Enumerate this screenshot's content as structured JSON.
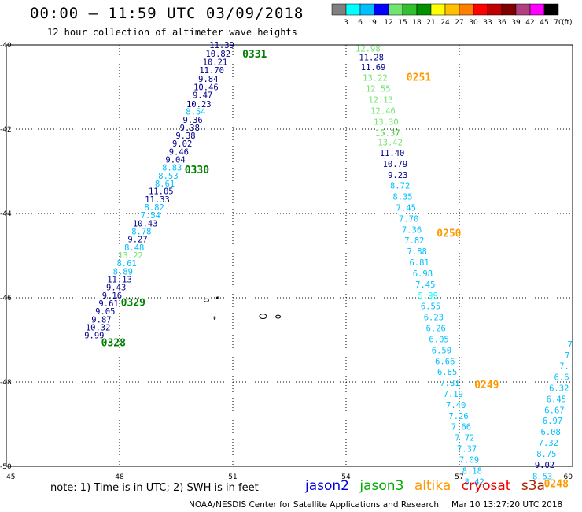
{
  "header": {
    "title": "00:00 – 11:59 UTC 03/09/2018",
    "subtitle": "12 hour collection of altimeter wave heights"
  },
  "legend": {
    "labels": [
      "3",
      "6",
      "9",
      "12",
      "15",
      "18",
      "21",
      "24",
      "27",
      "30",
      "33",
      "36",
      "39",
      "42",
      "45",
      "70",
      "(ft)"
    ],
    "colors": [
      "#808080",
      "#00ffff",
      "#00bfff",
      "#0000ff",
      "#6fe46f",
      "#30c030",
      "#009000",
      "#ffff00",
      "#ffc000",
      "#ff8000",
      "#ff0000",
      "#c00000",
      "#800000",
      "#b04080",
      "#ff00ff",
      "#000000"
    ]
  },
  "axes": {
    "lon_ticks": [
      "45",
      "48",
      "51",
      "54",
      "57",
      "60"
    ],
    "lat_ticks": [
      "-40",
      "-42",
      "-44",
      "-46",
      "-48",
      "-50"
    ]
  },
  "tracks": [
    {
      "satellite": "jason2",
      "pass": "0331",
      "pass_color": "#008000",
      "points": [
        {
          "lon": 50.71,
          "lat": -40.0,
          "swh": "11.39",
          "color": "#00008b"
        },
        {
          "lon": 50.61,
          "lat": -40.21,
          "swh": "10.82",
          "color": "#00008b"
        },
        {
          "lon": 50.53,
          "lat": -40.4,
          "swh": "10.21",
          "color": "#00008b"
        },
        {
          "lon": 50.44,
          "lat": -40.6,
          "swh": "11.70",
          "color": "#00008b"
        },
        {
          "lon": 50.35,
          "lat": -40.8,
          "swh": "9.84",
          "color": "#00008b"
        },
        {
          "lon": 50.29,
          "lat": -41.0,
          "swh": "10.46",
          "color": "#00008b"
        },
        {
          "lon": 50.2,
          "lat": -41.19,
          "swh": "9.47",
          "color": "#00008b"
        },
        {
          "lon": 50.1,
          "lat": -41.4,
          "swh": "10.23",
          "color": "#00008b"
        },
        {
          "lon": 50.02,
          "lat": -41.58,
          "swh": "8.54",
          "color": "#00bfff"
        },
        {
          "lon": 49.94,
          "lat": -41.78,
          "swh": "9.36",
          "color": "#00008b"
        },
        {
          "lon": 49.86,
          "lat": -41.96,
          "swh": "9.38",
          "color": "#00008b"
        },
        {
          "lon": 49.75,
          "lat": -42.15,
          "swh": "9.38",
          "color": "#00008b"
        },
        {
          "lon": 49.66,
          "lat": -42.34,
          "swh": "9.02",
          "color": "#00008b"
        },
        {
          "lon": 49.57,
          "lat": -42.53,
          "swh": "9.46",
          "color": "#00008b"
        },
        {
          "lon": 49.48,
          "lat": -42.72,
          "swh": "9.04",
          "color": "#00008b"
        }
      ]
    },
    {
      "satellite": "jason2",
      "pass": "0330",
      "pass_color": "#008000",
      "points": [
        {
          "lon": 49.39,
          "lat": -42.91,
          "swh": "8.83",
          "color": "#00bfff"
        },
        {
          "lon": 49.29,
          "lat": -43.1,
          "swh": "8.53",
          "color": "#00bfff"
        },
        {
          "lon": 49.2,
          "lat": -43.29,
          "swh": "8.61",
          "color": "#00bfff"
        },
        {
          "lon": 49.1,
          "lat": -43.47,
          "swh": "11.05",
          "color": "#00008b"
        },
        {
          "lon": 49.0,
          "lat": -43.66,
          "swh": "11.33",
          "color": "#00008b"
        },
        {
          "lon": 48.92,
          "lat": -43.85,
          "swh": "8.82",
          "color": "#00bfff"
        },
        {
          "lon": 48.82,
          "lat": -44.04,
          "swh": "7.54",
          "color": "#00bfff"
        },
        {
          "lon": 48.68,
          "lat": -44.23,
          "swh": "10.43",
          "color": "#00008b"
        },
        {
          "lon": 48.58,
          "lat": -44.42,
          "swh": "8.78",
          "color": "#00bfff"
        },
        {
          "lon": 48.48,
          "lat": -44.61,
          "swh": "9.27",
          "color": "#00008b"
        },
        {
          "lon": 48.39,
          "lat": -44.8,
          "swh": "8.48",
          "color": "#00bfff"
        },
        {
          "lon": 48.29,
          "lat": -44.99,
          "swh": "13.22",
          "color": "#6fe46f"
        },
        {
          "lon": 48.19,
          "lat": -45.18,
          "swh": "8.61",
          "color": "#00bfff"
        },
        {
          "lon": 48.09,
          "lat": -45.37,
          "swh": "8.89",
          "color": "#00bfff"
        },
        {
          "lon": 48.0,
          "lat": -45.56,
          "swh": "11.13",
          "color": "#00008b"
        },
        {
          "lon": 47.91,
          "lat": -45.75,
          "swh": "9.43",
          "color": "#00008b"
        }
      ]
    },
    {
      "satellite": "jason2",
      "pass": "0329",
      "pass_color": "#008000",
      "points": [
        {
          "lon": 47.8,
          "lat": -45.94,
          "swh": "9.16",
          "color": "#00008b"
        },
        {
          "lon": 47.71,
          "lat": -46.13,
          "swh": "9.61",
          "color": "#00008b"
        },
        {
          "lon": 47.62,
          "lat": -46.32,
          "swh": "9.05",
          "color": "#00008b"
        },
        {
          "lon": 47.52,
          "lat": -46.51,
          "swh": "9.87",
          "color": "#00008b"
        }
      ]
    },
    {
      "satellite": "jason2",
      "pass": "0328",
      "pass_color": "#008000",
      "points": [
        {
          "lon": 47.43,
          "lat": -46.7,
          "swh": "10.32",
          "color": "#00008b"
        },
        {
          "lon": 47.33,
          "lat": -46.89,
          "swh": "9.99",
          "color": "#00008b"
        }
      ]
    },
    {
      "satellite": "altika",
      "pass": "0251",
      "pass_color": "#ff9900",
      "points": [
        {
          "lon": 54.58,
          "lat": -40.08,
          "swh": "12.98",
          "color": "#6fe46f"
        },
        {
          "lon": 54.67,
          "lat": -40.29,
          "swh": "11.28",
          "color": "#00008b"
        },
        {
          "lon": 54.72,
          "lat": -40.52,
          "swh": "11.69",
          "color": "#00008b"
        },
        {
          "lon": 54.77,
          "lat": -40.78,
          "swh": "13.22",
          "color": "#6fe46f"
        },
        {
          "lon": 54.85,
          "lat": -41.04,
          "swh": "12.55",
          "color": "#6fe46f"
        },
        {
          "lon": 54.92,
          "lat": -41.3,
          "swh": "12.13",
          "color": "#6fe46f"
        },
        {
          "lon": 54.98,
          "lat": -41.56,
          "swh": "12.46",
          "color": "#6fe46f"
        },
        {
          "lon": 55.06,
          "lat": -41.82,
          "swh": "13.30",
          "color": "#6fe46f"
        },
        {
          "lon": 55.1,
          "lat": -42.08,
          "swh": "15.37",
          "color": "#30c030"
        },
        {
          "lon": 55.17,
          "lat": -42.31,
          "swh": "13.42",
          "color": "#6fe46f"
        },
        {
          "lon": 55.22,
          "lat": -42.56,
          "swh": "11.40",
          "color": "#00008b"
        },
        {
          "lon": 55.3,
          "lat": -42.82,
          "swh": "10.79",
          "color": "#00008b"
        },
        {
          "lon": 55.37,
          "lat": -43.08,
          "swh": "9.23",
          "color": "#00008b"
        },
        {
          "lon": 55.43,
          "lat": -43.34,
          "swh": "8.72",
          "color": "#00bfff"
        },
        {
          "lon": 55.5,
          "lat": -43.6,
          "swh": "8.35",
          "color": "#00bfff"
        },
        {
          "lon": 55.59,
          "lat": -43.86,
          "swh": "7.45",
          "color": "#00bfff"
        },
        {
          "lon": 55.66,
          "lat": -44.12,
          "swh": "7.70",
          "color": "#00bfff"
        }
      ]
    },
    {
      "satellite": "altika",
      "pass": "0250",
      "pass_color": "#ff9900",
      "points": [
        {
          "lon": 55.74,
          "lat": -44.38,
          "swh": "7.36",
          "color": "#00bfff"
        },
        {
          "lon": 55.81,
          "lat": -44.64,
          "swh": "7.82",
          "color": "#00bfff"
        },
        {
          "lon": 55.88,
          "lat": -44.9,
          "swh": "7.88",
          "color": "#00bfff"
        },
        {
          "lon": 55.94,
          "lat": -45.16,
          "swh": "6.81",
          "color": "#00bfff"
        },
        {
          "lon": 56.03,
          "lat": -45.42,
          "swh": "6.98",
          "color": "#00bfff"
        },
        {
          "lon": 56.1,
          "lat": -45.68,
          "swh": "7.45",
          "color": "#00bfff"
        },
        {
          "lon": 56.17,
          "lat": -45.94,
          "swh": "5.99",
          "color": "#00ffff"
        },
        {
          "lon": 56.24,
          "lat": -46.2,
          "swh": "6.55",
          "color": "#00bfff"
        },
        {
          "lon": 56.32,
          "lat": -46.46,
          "swh": "6.23",
          "color": "#00bfff"
        },
        {
          "lon": 56.38,
          "lat": -46.72,
          "swh": "6.26",
          "color": "#00bfff"
        },
        {
          "lon": 56.46,
          "lat": -46.98,
          "swh": "6.05",
          "color": "#00bfff"
        },
        {
          "lon": 56.53,
          "lat": -47.24,
          "swh": "6.50",
          "color": "#00bfff"
        },
        {
          "lon": 56.62,
          "lat": -47.5,
          "swh": "6.66",
          "color": "#00bfff"
        },
        {
          "lon": 56.68,
          "lat": -47.76,
          "swh": "6.85",
          "color": "#00bfff"
        }
      ]
    },
    {
      "satellite": "altika",
      "pass": "0249",
      "pass_color": "#ff9900",
      "points": [
        {
          "lon": 56.75,
          "lat": -48.02,
          "swh": "7.81",
          "color": "#00bfff"
        },
        {
          "lon": 56.84,
          "lat": -48.28,
          "swh": "7.19",
          "color": "#00bfff"
        },
        {
          "lon": 56.91,
          "lat": -48.54,
          "swh": "7.40",
          "color": "#00bfff"
        },
        {
          "lon": 56.98,
          "lat": -48.8,
          "swh": "7.26",
          "color": "#00bfff"
        },
        {
          "lon": 57.05,
          "lat": -49.06,
          "swh": "7.66",
          "color": "#00bfff"
        },
        {
          "lon": 57.14,
          "lat": -49.32,
          "swh": "7.72",
          "color": "#00bfff"
        },
        {
          "lon": 57.2,
          "lat": -49.58,
          "swh": "7.37",
          "color": "#00bfff"
        },
        {
          "lon": 57.26,
          "lat": -49.84,
          "swh": "7.09",
          "color": "#00bfff"
        },
        {
          "lon": 57.34,
          "lat": -50.1,
          "swh": "8.18",
          "color": "#00bfff"
        },
        {
          "lon": 57.4,
          "lat": -50.36,
          "swh": "8.42",
          "color": "#00bfff"
        }
      ]
    },
    {
      "satellite": "altika",
      "pass": "0248",
      "pass_color": "#ff9900",
      "points": [
        {
          "lon": 59.2,
          "lat": -50.23,
          "swh": "8.53",
          "color": "#00bfff"
        },
        {
          "lon": 59.26,
          "lat": -49.96,
          "swh": "9.02",
          "color": "#00008b"
        },
        {
          "lon": 59.31,
          "lat": -49.7,
          "swh": "8.75",
          "color": "#00bfff"
        },
        {
          "lon": 59.36,
          "lat": -49.44,
          "swh": "7.32",
          "color": "#00bfff"
        },
        {
          "lon": 59.42,
          "lat": -49.18,
          "swh": "6.08",
          "color": "#00bfff"
        },
        {
          "lon": 59.47,
          "lat": -48.92,
          "swh": "6.97",
          "color": "#00bfff"
        },
        {
          "lon": 59.52,
          "lat": -48.66,
          "swh": "6.67",
          "color": "#00bfff"
        },
        {
          "lon": 59.57,
          "lat": -48.4,
          "swh": "6.45",
          "color": "#00bfff"
        },
        {
          "lon": 59.64,
          "lat": -48.14,
          "swh": "6.32",
          "color": "#00bfff"
        },
        {
          "lon": 59.71,
          "lat": -47.88,
          "swh": "6.6",
          "color": "#00bfff"
        },
        {
          "lon": 59.78,
          "lat": -47.62,
          "swh": "7.",
          "color": "#00bfff"
        },
        {
          "lon": 59.86,
          "lat": -47.36,
          "swh": "7",
          "color": "#00bfff"
        },
        {
          "lon": 59.93,
          "lat": -47.1,
          "swh": "7",
          "color": "#00bfff"
        }
      ]
    }
  ],
  "islands": [
    {
      "name": "Prince Edward Islands",
      "lon": 37.8,
      "lat": -46.9
    },
    {
      "name": "Crozet",
      "lon": 50.5,
      "lat": -46.4
    },
    {
      "name": "Crozet east",
      "lon": 51.8,
      "lat": -46.45
    }
  ],
  "footer": {
    "note": "note:  1) Time is in UTC;  2) SWH is in feet",
    "satellites": [
      {
        "name": "jason2",
        "color": "#0000dd"
      },
      {
        "name": "jason3",
        "color": "#00aa00"
      },
      {
        "name": "altika",
        "color": "#ff9900"
      },
      {
        "name": "cryosat",
        "color": "#ee0000"
      },
      {
        "name": "s3a",
        "color": "#aa2200"
      }
    ],
    "credit": "NOAA/NESDIS Center for Satellite Applications and Research",
    "timestamp": "Mar 10 13:27:20 UTC 2018"
  }
}
